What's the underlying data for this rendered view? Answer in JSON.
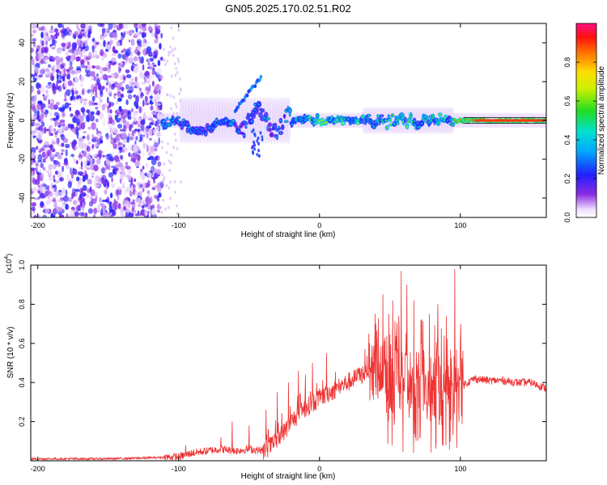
{
  "figure": {
    "title": "GN05.2025.170.02.51.R02"
  },
  "chart_data": [
    {
      "type": "heatmap",
      "xlabel": "Height of straight line (km)",
      "ylabel": "Frequency (Hz)",
      "xlim": [
        -205,
        161
      ],
      "ylim": [
        -50,
        50
      ],
      "xticks": [
        -200,
        -100,
        0,
        100
      ],
      "yticks": [
        -40,
        -20,
        0,
        20,
        40
      ],
      "colorbar": {
        "label": "Normalized spectral amplitude",
        "range": [
          0,
          1
        ],
        "ticks": [
          0,
          0.2,
          0.4,
          0.6,
          0.8
        ],
        "tick_labels": [
          "0.0",
          "0.2",
          "0.4",
          "0.6",
          "0.8"
        ],
        "colormap": "rainbow (white → violet → blue → cyan → green → yellow → red → magenta)"
      },
      "features": {
        "noise_region_x": [
          -205,
          -112
        ],
        "signal_track_x": [
          -112,
          161
        ],
        "signal_center_hz": 0,
        "wavy_segment_x": [
          -100,
          -20
        ],
        "steady_high_amplitude_x": [
          100,
          161
        ]
      },
      "grid": false
    },
    {
      "type": "line",
      "xlabel": "Height of straight line (km)",
      "ylabel": "SNR (10 * v/v)",
      "yscale_label": "(x10",
      "yscale_exp": "4",
      "yscale_close": ")",
      "xlim": [
        -205,
        161
      ],
      "ylim": [
        0,
        1.0
      ],
      "xticks": [
        -200,
        -100,
        0,
        100
      ],
      "yticks": [
        0.2,
        0.4,
        0.6,
        0.8,
        1.0
      ],
      "ytick_labels": [
        "0.2",
        "0.4",
        "0.6",
        "0.8",
        "1.0"
      ],
      "series": [
        {
          "color": "#ee3333",
          "envelope_x": [
            -205,
            -150,
            -120,
            -100,
            -90,
            -80,
            -70,
            -60,
            -50,
            -40,
            -30,
            -20,
            -10,
            0,
            10,
            20,
            30,
            35,
            40,
            50,
            60,
            70,
            80,
            90,
            100,
            105,
            110,
            120,
            130,
            140,
            150,
            161
          ],
          "envelope_baseline": [
            0.01,
            0.01,
            0.015,
            0.02,
            0.04,
            0.05,
            0.06,
            0.05,
            0.06,
            0.05,
            0.1,
            0.2,
            0.27,
            0.32,
            0.36,
            0.4,
            0.44,
            0.47,
            0.45,
            0.4,
            0.4,
            0.38,
            0.36,
            0.35,
            0.38,
            0.4,
            0.42,
            0.41,
            0.41,
            0.4,
            0.4,
            0.37
          ],
          "peak_x": [
            -95,
            -70,
            -62,
            -50,
            -38,
            -30,
            -22,
            -15,
            -10,
            -5,
            5,
            40,
            45,
            52,
            58,
            62,
            67,
            72,
            78,
            84,
            90,
            96,
            100
          ],
          "peak_y": [
            0.08,
            0.12,
            0.2,
            0.18,
            0.26,
            0.35,
            0.4,
            0.46,
            0.44,
            0.5,
            0.55,
            0.7,
            0.85,
            0.82,
            0.97,
            0.9,
            0.82,
            0.72,
            0.75,
            0.8,
            0.74,
            0.98,
            0.62
          ]
        }
      ],
      "grid": false
    }
  ]
}
